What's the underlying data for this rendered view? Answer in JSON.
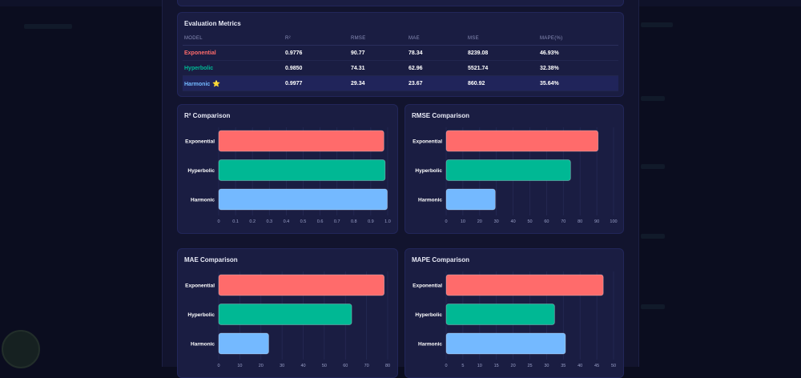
{
  "colors": {
    "exponential": "#ff6b6b",
    "hyperbolic": "#00b894",
    "harmonic": "#74b9ff"
  },
  "metrics_table": {
    "title": "Evaluation Metrics",
    "headers": [
      "MODEL",
      "R²",
      "RMSE",
      "MAE",
      "MSE",
      "MAPE(%)"
    ],
    "rows": [
      {
        "model": "Exponential",
        "r2": "0.9776",
        "rmse": "90.77",
        "mae": "78.34",
        "mse": "8239.08",
        "mape": "46.93%",
        "best": false
      },
      {
        "model": "Hyperbolic",
        "r2": "0.9850",
        "rmse": "74.31",
        "mae": "62.96",
        "mse": "5521.74",
        "mape": "32.38%",
        "best": false
      },
      {
        "model": "Harmonic",
        "r2": "0.9977",
        "rmse": "29.34",
        "mae": "23.67",
        "mse": "860.92",
        "mape": "35.64%",
        "best": true,
        "badge": "⭐"
      }
    ]
  },
  "chart_data": [
    {
      "type": "bar",
      "orientation": "horizontal",
      "title": "R² Comparison",
      "categories": [
        "Exponential",
        "Hyperbolic",
        "Harmonic"
      ],
      "values": [
        0.9776,
        0.985,
        0.9977
      ],
      "xlim": [
        0,
        1.0
      ],
      "ticks": [
        "0",
        "0.1",
        "0.2",
        "0.3",
        "0.4",
        "0.5",
        "0.6",
        "0.7",
        "0.8",
        "0.9",
        "1.0"
      ]
    },
    {
      "type": "bar",
      "orientation": "horizontal",
      "title": "RMSE Comparison",
      "categories": [
        "Exponential",
        "Hyperbolic",
        "Harmonic"
      ],
      "values": [
        90.77,
        74.31,
        29.34
      ],
      "xlim": [
        0,
        100
      ],
      "ticks": [
        "0",
        "10",
        "20",
        "30",
        "40",
        "50",
        "60",
        "70",
        "80",
        "90",
        "100"
      ]
    },
    {
      "type": "bar",
      "orientation": "horizontal",
      "title": "MAE Comparison",
      "categories": [
        "Exponential",
        "Hyperbolic",
        "Harmonic"
      ],
      "values": [
        78.34,
        62.96,
        23.67
      ],
      "xlim": [
        0,
        80
      ],
      "ticks": [
        "0",
        "10",
        "20",
        "30",
        "40",
        "50",
        "60",
        "70",
        "80"
      ]
    },
    {
      "type": "bar",
      "orientation": "horizontal",
      "title": "MAPE Comparison",
      "categories": [
        "Exponential",
        "Hyperbolic",
        "Harmonic"
      ],
      "values": [
        46.93,
        32.38,
        35.64
      ],
      "xlim": [
        0,
        50
      ],
      "ticks": [
        "0",
        "5",
        "10",
        "15",
        "20",
        "25",
        "30",
        "35",
        "40",
        "45",
        "50"
      ]
    }
  ]
}
